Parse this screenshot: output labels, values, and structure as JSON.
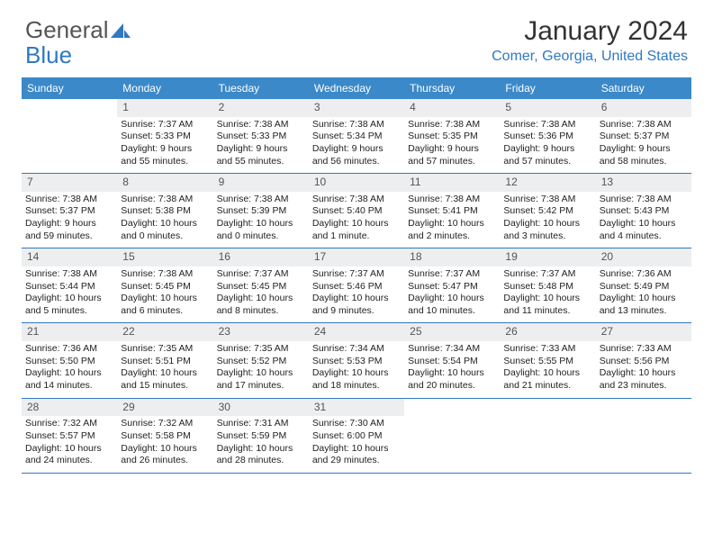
{
  "logo": {
    "text1": "General",
    "text2": "Blue"
  },
  "title": "January 2024",
  "location": "Comer, Georgia, United States",
  "colors": {
    "header_bg": "#3b89c9",
    "accent": "#2f78c4",
    "daybar_bg": "#eceeef",
    "text": "#333333"
  },
  "dayNames": [
    "Sunday",
    "Monday",
    "Tuesday",
    "Wednesday",
    "Thursday",
    "Friday",
    "Saturday"
  ],
  "weeks": [
    [
      {
        "n": "",
        "sr": "",
        "ss": "",
        "dl": ""
      },
      {
        "n": "1",
        "sr": "Sunrise: 7:37 AM",
        "ss": "Sunset: 5:33 PM",
        "dl": "Daylight: 9 hours and 55 minutes."
      },
      {
        "n": "2",
        "sr": "Sunrise: 7:38 AM",
        "ss": "Sunset: 5:33 PM",
        "dl": "Daylight: 9 hours and 55 minutes."
      },
      {
        "n": "3",
        "sr": "Sunrise: 7:38 AM",
        "ss": "Sunset: 5:34 PM",
        "dl": "Daylight: 9 hours and 56 minutes."
      },
      {
        "n": "4",
        "sr": "Sunrise: 7:38 AM",
        "ss": "Sunset: 5:35 PM",
        "dl": "Daylight: 9 hours and 57 minutes."
      },
      {
        "n": "5",
        "sr": "Sunrise: 7:38 AM",
        "ss": "Sunset: 5:36 PM",
        "dl": "Daylight: 9 hours and 57 minutes."
      },
      {
        "n": "6",
        "sr": "Sunrise: 7:38 AM",
        "ss": "Sunset: 5:37 PM",
        "dl": "Daylight: 9 hours and 58 minutes."
      }
    ],
    [
      {
        "n": "7",
        "sr": "Sunrise: 7:38 AM",
        "ss": "Sunset: 5:37 PM",
        "dl": "Daylight: 9 hours and 59 minutes."
      },
      {
        "n": "8",
        "sr": "Sunrise: 7:38 AM",
        "ss": "Sunset: 5:38 PM",
        "dl": "Daylight: 10 hours and 0 minutes."
      },
      {
        "n": "9",
        "sr": "Sunrise: 7:38 AM",
        "ss": "Sunset: 5:39 PM",
        "dl": "Daylight: 10 hours and 0 minutes."
      },
      {
        "n": "10",
        "sr": "Sunrise: 7:38 AM",
        "ss": "Sunset: 5:40 PM",
        "dl": "Daylight: 10 hours and 1 minute."
      },
      {
        "n": "11",
        "sr": "Sunrise: 7:38 AM",
        "ss": "Sunset: 5:41 PM",
        "dl": "Daylight: 10 hours and 2 minutes."
      },
      {
        "n": "12",
        "sr": "Sunrise: 7:38 AM",
        "ss": "Sunset: 5:42 PM",
        "dl": "Daylight: 10 hours and 3 minutes."
      },
      {
        "n": "13",
        "sr": "Sunrise: 7:38 AM",
        "ss": "Sunset: 5:43 PM",
        "dl": "Daylight: 10 hours and 4 minutes."
      }
    ],
    [
      {
        "n": "14",
        "sr": "Sunrise: 7:38 AM",
        "ss": "Sunset: 5:44 PM",
        "dl": "Daylight: 10 hours and 5 minutes."
      },
      {
        "n": "15",
        "sr": "Sunrise: 7:38 AM",
        "ss": "Sunset: 5:45 PM",
        "dl": "Daylight: 10 hours and 6 minutes."
      },
      {
        "n": "16",
        "sr": "Sunrise: 7:37 AM",
        "ss": "Sunset: 5:45 PM",
        "dl": "Daylight: 10 hours and 8 minutes."
      },
      {
        "n": "17",
        "sr": "Sunrise: 7:37 AM",
        "ss": "Sunset: 5:46 PM",
        "dl": "Daylight: 10 hours and 9 minutes."
      },
      {
        "n": "18",
        "sr": "Sunrise: 7:37 AM",
        "ss": "Sunset: 5:47 PM",
        "dl": "Daylight: 10 hours and 10 minutes."
      },
      {
        "n": "19",
        "sr": "Sunrise: 7:37 AM",
        "ss": "Sunset: 5:48 PM",
        "dl": "Daylight: 10 hours and 11 minutes."
      },
      {
        "n": "20",
        "sr": "Sunrise: 7:36 AM",
        "ss": "Sunset: 5:49 PM",
        "dl": "Daylight: 10 hours and 13 minutes."
      }
    ],
    [
      {
        "n": "21",
        "sr": "Sunrise: 7:36 AM",
        "ss": "Sunset: 5:50 PM",
        "dl": "Daylight: 10 hours and 14 minutes."
      },
      {
        "n": "22",
        "sr": "Sunrise: 7:35 AM",
        "ss": "Sunset: 5:51 PM",
        "dl": "Daylight: 10 hours and 15 minutes."
      },
      {
        "n": "23",
        "sr": "Sunrise: 7:35 AM",
        "ss": "Sunset: 5:52 PM",
        "dl": "Daylight: 10 hours and 17 minutes."
      },
      {
        "n": "24",
        "sr": "Sunrise: 7:34 AM",
        "ss": "Sunset: 5:53 PM",
        "dl": "Daylight: 10 hours and 18 minutes."
      },
      {
        "n": "25",
        "sr": "Sunrise: 7:34 AM",
        "ss": "Sunset: 5:54 PM",
        "dl": "Daylight: 10 hours and 20 minutes."
      },
      {
        "n": "26",
        "sr": "Sunrise: 7:33 AM",
        "ss": "Sunset: 5:55 PM",
        "dl": "Daylight: 10 hours and 21 minutes."
      },
      {
        "n": "27",
        "sr": "Sunrise: 7:33 AM",
        "ss": "Sunset: 5:56 PM",
        "dl": "Daylight: 10 hours and 23 minutes."
      }
    ],
    [
      {
        "n": "28",
        "sr": "Sunrise: 7:32 AM",
        "ss": "Sunset: 5:57 PM",
        "dl": "Daylight: 10 hours and 24 minutes."
      },
      {
        "n": "29",
        "sr": "Sunrise: 7:32 AM",
        "ss": "Sunset: 5:58 PM",
        "dl": "Daylight: 10 hours and 26 minutes."
      },
      {
        "n": "30",
        "sr": "Sunrise: 7:31 AM",
        "ss": "Sunset: 5:59 PM",
        "dl": "Daylight: 10 hours and 28 minutes."
      },
      {
        "n": "31",
        "sr": "Sunrise: 7:30 AM",
        "ss": "Sunset: 6:00 PM",
        "dl": "Daylight: 10 hours and 29 minutes."
      },
      {
        "n": "",
        "sr": "",
        "ss": "",
        "dl": ""
      },
      {
        "n": "",
        "sr": "",
        "ss": "",
        "dl": ""
      },
      {
        "n": "",
        "sr": "",
        "ss": "",
        "dl": ""
      }
    ]
  ]
}
